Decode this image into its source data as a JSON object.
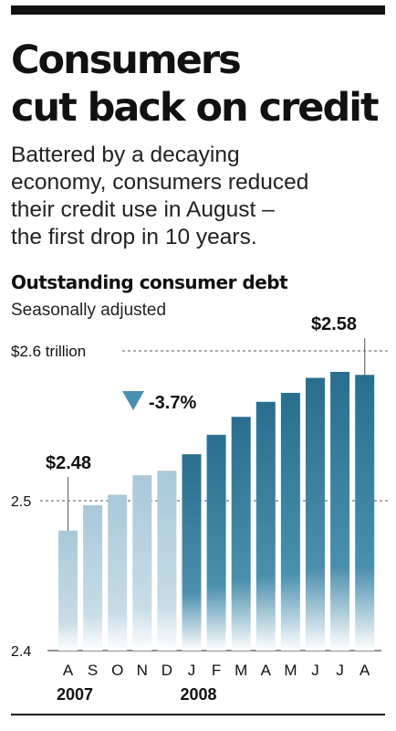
{
  "headline": {
    "line1": "Consumers",
    "line2": "cut back on credit"
  },
  "deck": {
    "line1": "Battered by a decaying",
    "line2": "economy, consumers reduced",
    "line3": "their credit use in August –",
    "line4": "the first drop in 10 years."
  },
  "chart_data": {
    "type": "bar",
    "title": "Outstanding consumer debt",
    "subtitle": "Seasonally adjusted",
    "categories": [
      "A",
      "S",
      "O",
      "N",
      "D",
      "J",
      "F",
      "M",
      "A",
      "M",
      "J",
      "J",
      "A"
    ],
    "year_labels": [
      {
        "label": "2007",
        "start_index": 0
      },
      {
        "label": "2008",
        "start_index": 5
      }
    ],
    "values": [
      2.48,
      2.497,
      2.504,
      2.517,
      2.52,
      2.531,
      2.544,
      2.556,
      2.566,
      2.572,
      2.582,
      2.586,
      2.584
    ],
    "highlight_from_index": 5,
    "ylim": [
      2.4,
      2.6
    ],
    "ytick_labels": [
      {
        "value": 2.6,
        "label": "$2.6 trillion"
      },
      {
        "value": 2.5,
        "label": "2.5"
      },
      {
        "value": 2.4,
        "label": "2.4"
      }
    ],
    "dashed_gridlines_at": [
      2.6,
      2.5
    ],
    "annotations": {
      "first_value_label": "$2.48",
      "last_value_label": "$2.58",
      "change_label": "-3.7%"
    },
    "colors": {
      "bar_2007": "#aecbdb",
      "bar_2008": "#2f7494",
      "change_marker": "#4a8fb0",
      "leader_line": "#6d6d6d"
    }
  }
}
